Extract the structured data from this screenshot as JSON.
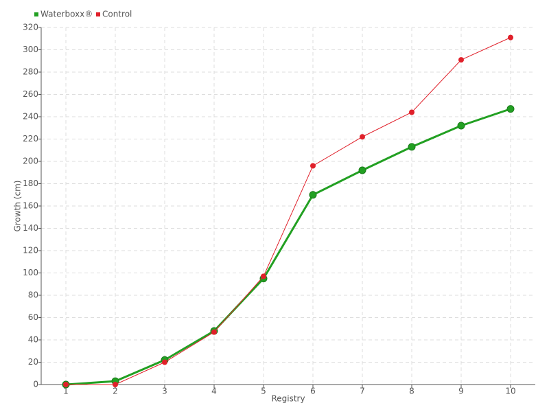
{
  "chart_data": {
    "type": "line",
    "x_label": "Registry",
    "y_label": "Growth (cm)",
    "categories": [
      "1",
      "2",
      "3",
      "4",
      "5",
      "6",
      "7",
      "8",
      "9",
      "10"
    ],
    "series": [
      {
        "name": "Waterboxx®",
        "color": "#22a022",
        "values": [
          0,
          3,
          22,
          48,
          95,
          170,
          192,
          213,
          232,
          247
        ]
      },
      {
        "name": "Control",
        "color": "#e0202a",
        "values": [
          0,
          0,
          20,
          47,
          97,
          196,
          222,
          244,
          291,
          311
        ]
      }
    ],
    "ylim": [
      0,
      320
    ],
    "yticks": [
      0,
      20,
      40,
      60,
      80,
      100,
      120,
      140,
      160,
      180,
      200,
      220,
      240,
      260,
      280,
      300,
      320
    ],
    "grid": true,
    "legend": "top-left"
  }
}
